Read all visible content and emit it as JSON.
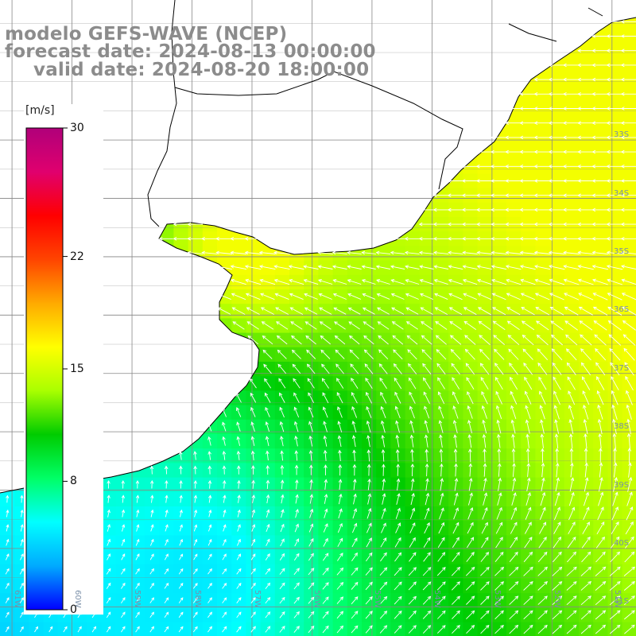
{
  "titles": {
    "line1": "modelo GEFS-WAVE (NCEP)",
    "line2": "forecast date: 2024-08-13 00:00:00",
    "line3": "valid date: 2024-08-20 18:00:00"
  },
  "colorbar": {
    "unit": "[m/s]",
    "min": 0,
    "max": 30,
    "ticks": [
      {
        "label": "30",
        "value": 30
      },
      {
        "label": "22",
        "value": 22
      },
      {
        "label": "15",
        "value": 15
      },
      {
        "label": "8",
        "value": 8
      },
      {
        "label": "0",
        "value": 0
      }
    ],
    "stops": [
      "#0000ff",
      "#00aaff",
      "#00ffff",
      "#00ff66",
      "#00cc00",
      "#aaff00",
      "#ffff00",
      "#ffaa00",
      "#ff4400",
      "#ff0000",
      "#e0006e",
      "#b0007a"
    ]
  },
  "map": {
    "lat_labels": [
      {
        "label": "33S",
        "lat": -33
      },
      {
        "label": "34S",
        "lat": -34
      },
      {
        "label": "35S",
        "lat": -35
      },
      {
        "label": "36S",
        "lat": -36
      },
      {
        "label": "37S",
        "lat": -37
      },
      {
        "label": "38S",
        "lat": -38
      },
      {
        "label": "39S",
        "lat": -39
      },
      {
        "label": "40S",
        "lat": -40
      },
      {
        "label": "41S",
        "lat": -41
      }
    ],
    "lon_labels": [
      {
        "label": "61W",
        "lon": -61
      },
      {
        "label": "60W",
        "lon": -60
      },
      {
        "label": "59W",
        "lon": -59
      },
      {
        "label": "58W",
        "lon": -58
      },
      {
        "label": "57W",
        "lon": -57
      },
      {
        "label": "56W",
        "lon": -56
      },
      {
        "label": "55W",
        "lon": -55
      },
      {
        "label": "54W",
        "lon": -54
      },
      {
        "label": "53W",
        "lon": -53
      },
      {
        "label": "52W",
        "lon": -52
      },
      {
        "label": "51W",
        "lon": -51
      }
    ],
    "lon_range": [
      -61.2,
      -50.6
    ],
    "lat_range": [
      -41.5,
      -30.6
    ],
    "field": "wind speed [m/s] with wind direction arrows",
    "land_color": "#ffffff",
    "grid_color": "#888888"
  }
}
